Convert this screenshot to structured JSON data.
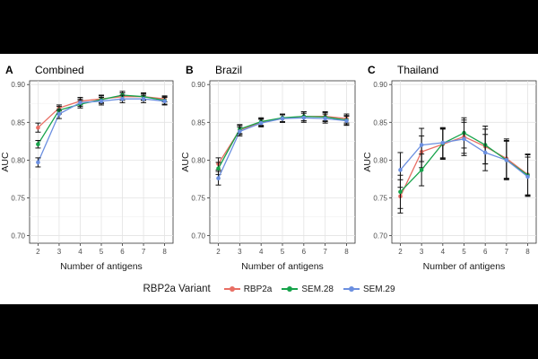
{
  "colors": {
    "RBP2a": "#e86e64",
    "SEM.28": "#16a34a",
    "SEM.29": "#6b8fe0"
  },
  "legend": {
    "title": "RBP2a Variant",
    "items": [
      "RBP2a",
      "SEM.28",
      "SEM.29"
    ]
  },
  "chart_data": [
    {
      "type": "line",
      "panel_letter": "A",
      "title": "Combined",
      "xlabel": "Number of antigens",
      "ylabel": "AUC",
      "x": [
        2,
        3,
        4,
        5,
        6,
        7,
        8
      ],
      "ylim": [
        0.69,
        0.905
      ],
      "yticks": [
        0.7,
        0.75,
        0.8,
        0.85,
        0.9
      ],
      "ytick_labels": [
        "0.70",
        "0.75",
        "0.80",
        "0.85",
        "0.90"
      ],
      "series": [
        {
          "name": "RBP2a",
          "values": [
            0.843,
            0.869,
            0.878,
            0.881,
            0.884,
            0.884,
            0.881
          ],
          "errors": [
            0.006,
            0.004,
            0.005,
            0.005,
            0.005,
            0.004,
            0.004
          ]
        },
        {
          "name": "SEM.28",
          "values": [
            0.821,
            0.866,
            0.874,
            0.88,
            0.886,
            0.884,
            0.879
          ],
          "errors": [
            0.005,
            0.005,
            0.005,
            0.005,
            0.005,
            0.005,
            0.005
          ]
        },
        {
          "name": "SEM.29",
          "values": [
            0.797,
            0.861,
            0.876,
            0.878,
            0.881,
            0.881,
            0.878
          ],
          "errors": [
            0.006,
            0.006,
            0.005,
            0.005,
            0.005,
            0.005,
            0.005
          ]
        }
      ]
    },
    {
      "type": "line",
      "panel_letter": "B",
      "title": "Brazil",
      "xlabel": "Number of antigens",
      "ylabel": "AUC",
      "x": [
        2,
        3,
        4,
        5,
        6,
        7,
        8
      ],
      "ylim": [
        0.69,
        0.905
      ],
      "yticks": [
        0.7,
        0.75,
        0.8,
        0.85,
        0.9
      ],
      "ytick_labels": [
        "0.70",
        "0.75",
        "0.80",
        "0.85",
        "0.90"
      ],
      "series": [
        {
          "name": "RBP2a",
          "values": [
            0.795,
            0.84,
            0.85,
            0.855,
            0.858,
            0.858,
            0.855
          ],
          "errors": [
            0.008,
            0.006,
            0.005,
            0.005,
            0.006,
            0.006,
            0.006
          ]
        },
        {
          "name": "SEM.28",
          "values": [
            0.789,
            0.841,
            0.851,
            0.856,
            0.858,
            0.857,
            0.853
          ],
          "errors": [
            0.008,
            0.006,
            0.005,
            0.005,
            0.006,
            0.006,
            0.006
          ]
        },
        {
          "name": "SEM.29",
          "values": [
            0.776,
            0.838,
            0.849,
            0.855,
            0.856,
            0.855,
            0.852
          ],
          "errors": [
            0.009,
            0.006,
            0.005,
            0.005,
            0.006,
            0.006,
            0.006
          ]
        }
      ]
    },
    {
      "type": "line",
      "panel_letter": "C",
      "title": "Thailand",
      "xlabel": "Number of antigens",
      "ylabel": "AUC",
      "x": [
        2,
        3,
        4,
        5,
        6,
        7,
        8
      ],
      "ylim": [
        0.69,
        0.905
      ],
      "yticks": [
        0.7,
        0.75,
        0.8,
        0.85,
        0.9
      ],
      "ytick_labels": [
        "0.70",
        "0.75",
        "0.80",
        "0.85",
        "0.90"
      ],
      "series": [
        {
          "name": "RBP2a",
          "values": [
            0.752,
            0.811,
            0.821,
            0.831,
            0.818,
            0.802,
            0.781
          ],
          "errors": [
            0.022,
            0.021,
            0.02,
            0.022,
            0.023,
            0.026,
            0.027
          ]
        },
        {
          "name": "SEM.28",
          "values": [
            0.758,
            0.787,
            0.822,
            0.836,
            0.82,
            0.8,
            0.78
          ],
          "errors": [
            0.022,
            0.021,
            0.02,
            0.02,
            0.025,
            0.026,
            0.027
          ]
        },
        {
          "name": "SEM.29",
          "values": [
            0.787,
            0.82,
            0.823,
            0.828,
            0.81,
            0.8,
            0.778
          ],
          "errors": [
            0.023,
            0.022,
            0.02,
            0.022,
            0.024,
            0.025,
            0.026
          ]
        }
      ]
    }
  ]
}
